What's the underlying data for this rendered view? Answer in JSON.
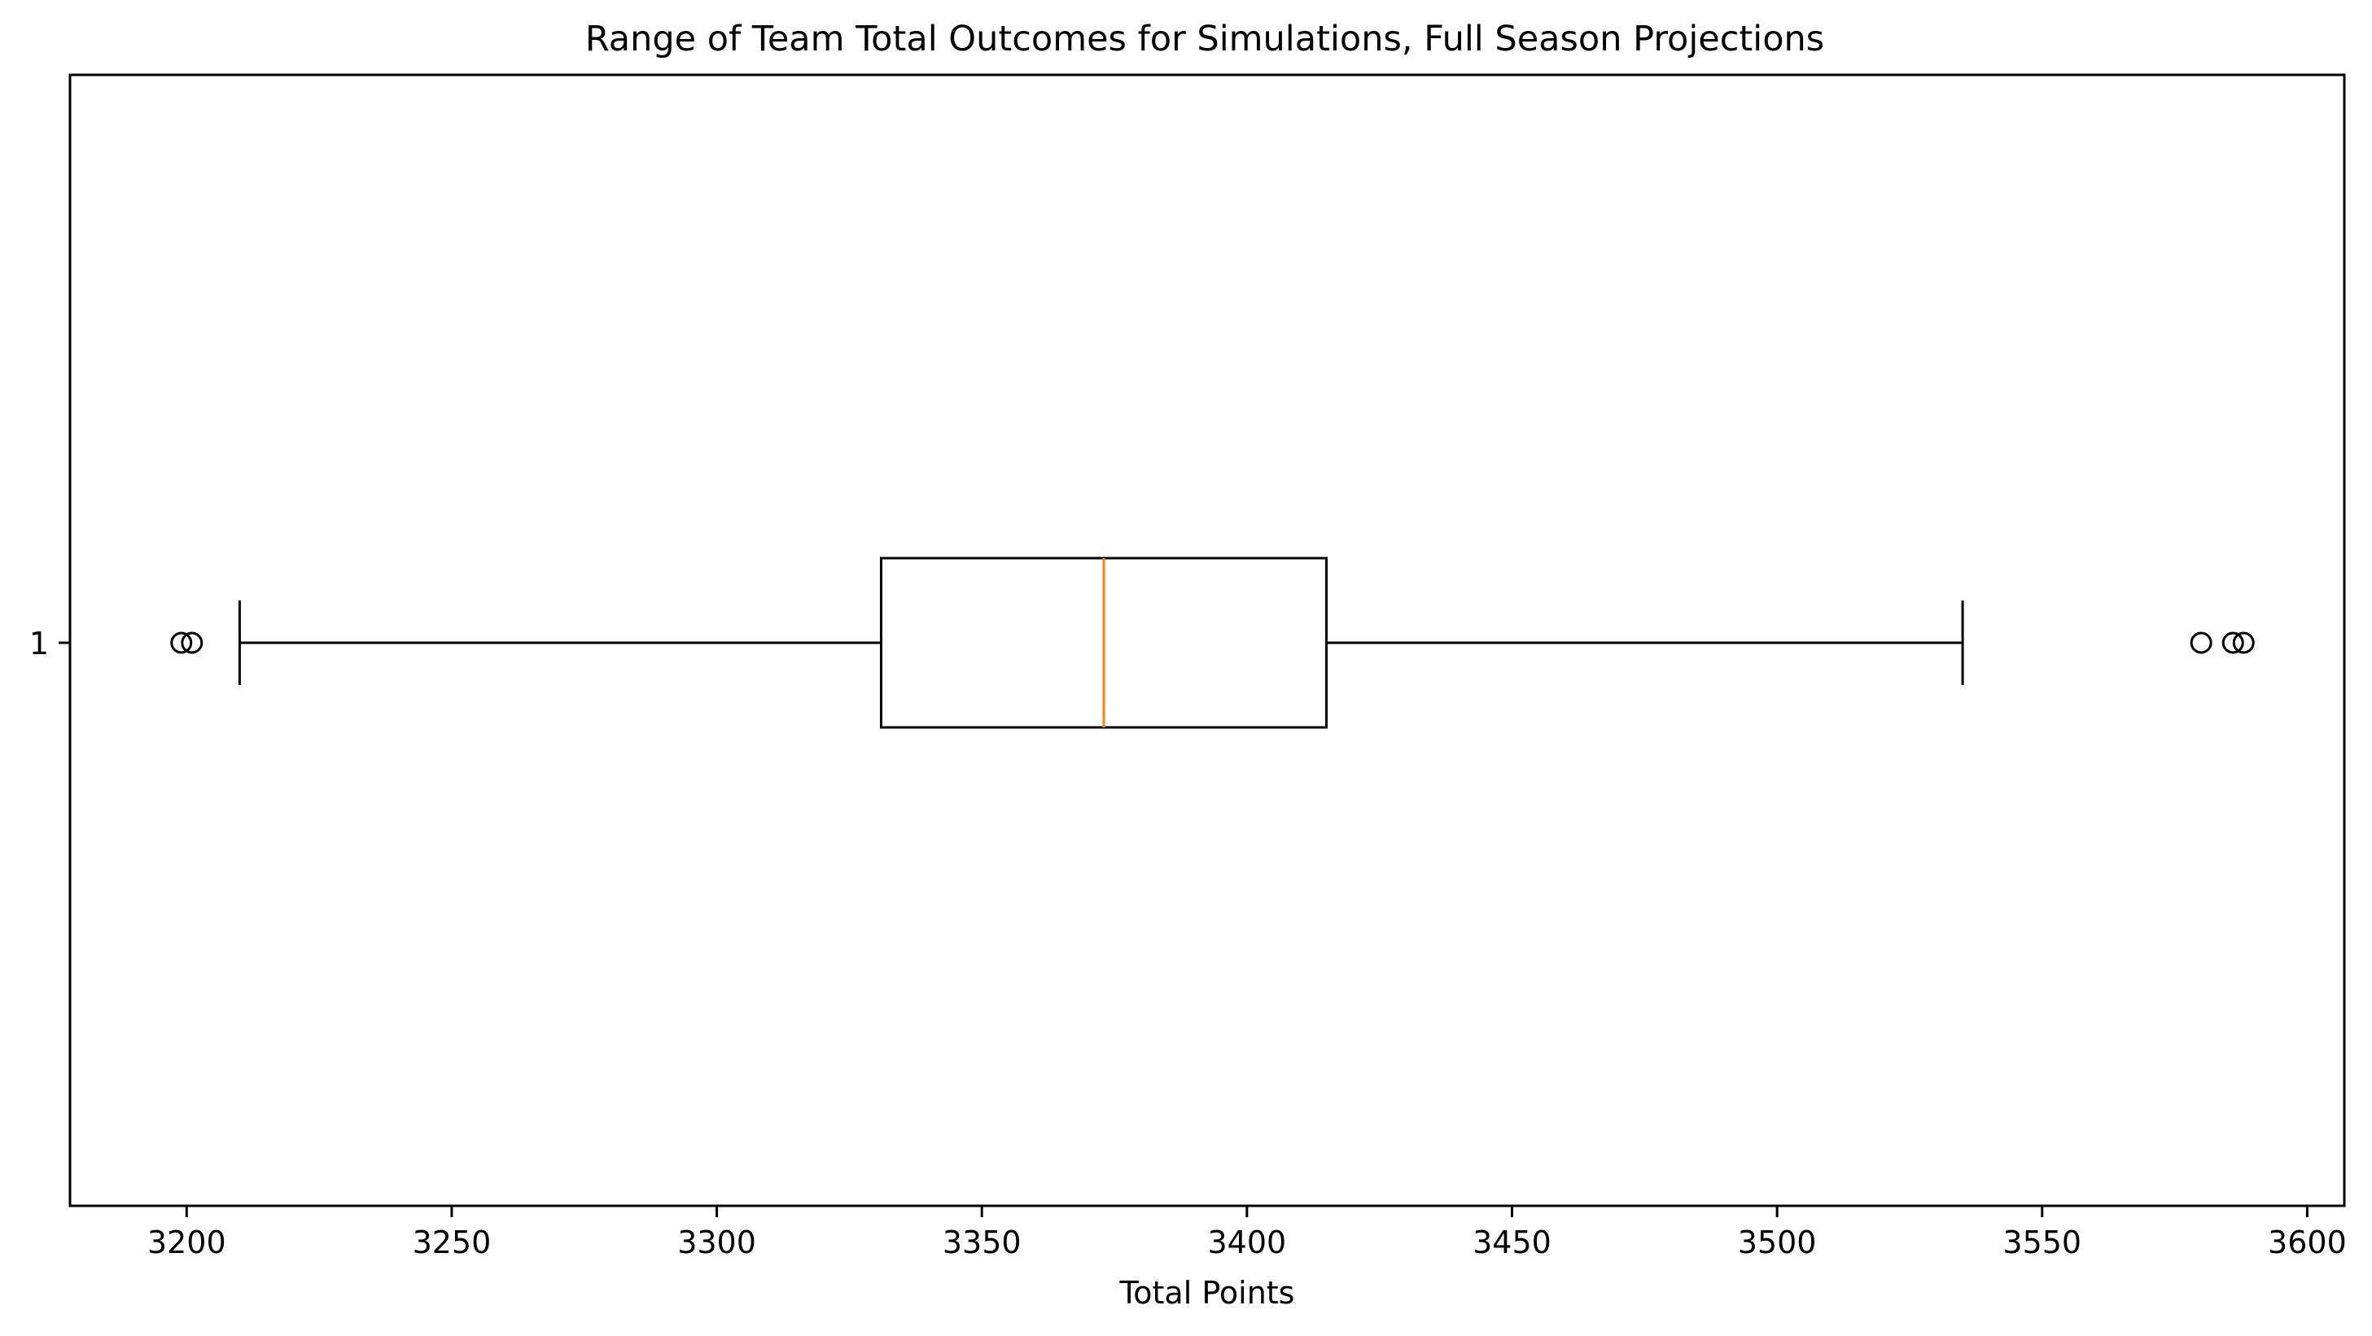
{
  "chart_data": {
    "type": "boxplot",
    "title": "Range of Team Total Outcomes for Simulations, Full Season Projections",
    "xlabel": "Total Points",
    "ylabel": "",
    "orientation": "horizontal",
    "xlim": [
      3178,
      3607
    ],
    "x_ticks": [
      3200,
      3250,
      3300,
      3350,
      3400,
      3450,
      3500,
      3550,
      3600
    ],
    "y_tick_labels": [
      "1"
    ],
    "grid": false,
    "series": [
      {
        "label": "1",
        "whisker_low": 3210,
        "q1": 3331,
        "median": 3373,
        "q3": 3415,
        "whisker_high": 3535,
        "outliers": [
          3199,
          3201,
          3580,
          3586,
          3588
        ]
      }
    ],
    "colors": {
      "box": "#000000",
      "median": "#ff7f0e",
      "axes": "#000000",
      "background": "#ffffff"
    }
  }
}
